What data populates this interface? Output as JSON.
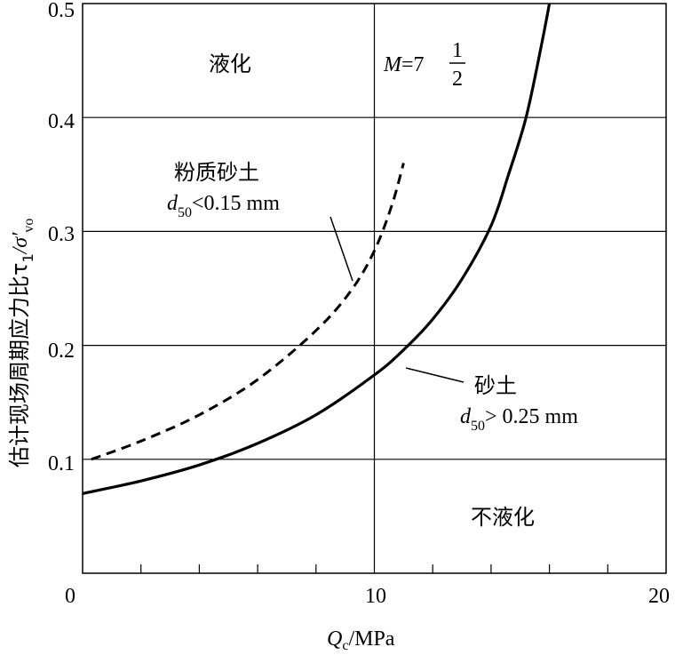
{
  "chart_data": {
    "type": "line",
    "xlabel": {
      "main": "Q",
      "sub": "c",
      "unit": "/MPa"
    },
    "ylabel": {
      "text": "估计现场周期应力比τ",
      "sub1": "1",
      "slash": "/σ′",
      "sub2": "vo"
    },
    "xlim": [
      0,
      20
    ],
    "ylim": [
      0,
      0.5
    ],
    "xticks": [
      0,
      10,
      20
    ],
    "xtick_labels": [
      "0",
      "10",
      "20"
    ],
    "yticks": [
      0.1,
      0.2,
      0.3,
      0.4,
      0.5
    ],
    "ytick_labels": [
      "0.1",
      "0.2",
      "0.3",
      "0.4",
      "0.5"
    ],
    "grid": true,
    "series": [
      {
        "style": "solid",
        "x": [
          0,
          2,
          4,
          6,
          8,
          10,
          11,
          12,
          13,
          14,
          14.6,
          15.2,
          15.7,
          16.0
        ],
        "y": [
          0.07,
          0.081,
          0.095,
          0.114,
          0.139,
          0.174,
          0.196,
          0.223,
          0.258,
          0.305,
          0.35,
          0.4,
          0.46,
          0.5
        ]
      },
      {
        "style": "dashed",
        "x": [
          0.3,
          2,
          4,
          6,
          8,
          9.2,
          10,
          10.6,
          11.0
        ],
        "y": [
          0.1,
          0.116,
          0.139,
          0.17,
          0.213,
          0.248,
          0.283,
          0.323,
          0.36
        ]
      }
    ],
    "annotations": {
      "liquefaction": "液化",
      "no_liquefaction": "不液化",
      "magnitude_lhs": "M",
      "magnitude_eq": "=7",
      "magnitude_num": "1",
      "magnitude_den": "2",
      "silty_sand_title": "粉质砂土",
      "silty_sand_d": "d",
      "silty_sand_sub": "50",
      "silty_sand_cond": "<0.15 mm",
      "sand_title": "砂土",
      "sand_d": "d",
      "sand_sub": "50",
      "sand_cond": "> 0.25 mm"
    }
  }
}
